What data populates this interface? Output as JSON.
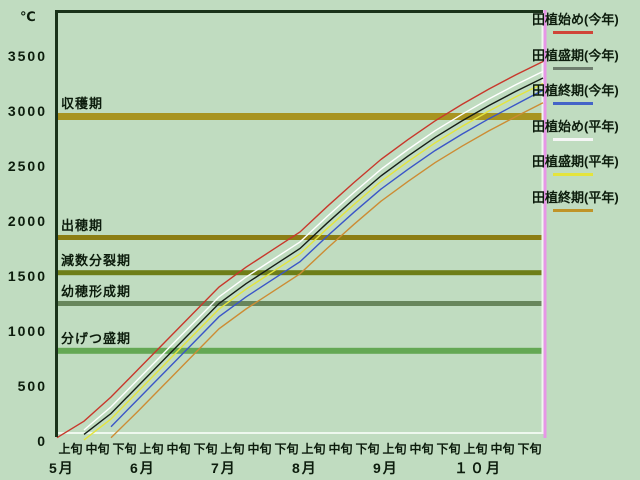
{
  "chart_data": {
    "type": "line",
    "title": "",
    "ylabel": "℃",
    "ylim": [
      0,
      3700
    ],
    "yticks": [
      0,
      500,
      1000,
      1500,
      2000,
      2500,
      3000,
      3500
    ],
    "grid": false,
    "legend_position": "right-outside",
    "x_period_labels": [
      "上旬",
      "中旬",
      "下旬",
      "上旬",
      "中旬",
      "下旬",
      "上旬",
      "中旬",
      "下旬",
      "上旬",
      "中旬",
      "下旬",
      "上旬",
      "中旬",
      "下旬",
      "上旬",
      "中旬",
      "下旬"
    ],
    "months": [
      {
        "label": "5月",
        "start_period": 0
      },
      {
        "label": "6月",
        "start_period": 3
      },
      {
        "label": "7月",
        "start_period": 6
      },
      {
        "label": "8月",
        "start_period": 9
      },
      {
        "label": "9月",
        "start_period": 12
      },
      {
        "label": "１０月",
        "start_period": 15
      }
    ],
    "series": [
      {
        "name": "田植始め(今年)",
        "color": "#c8382c",
        "legend_color": "#d04438",
        "z": 5,
        "values": [
          30,
          180,
          400,
          650,
          900,
          1150,
          1400,
          1580,
          1740,
          1900,
          2130,
          2350,
          2560,
          2740,
          2910,
          3060,
          3200,
          3330,
          3450
        ]
      },
      {
        "name": "田植盛期(今年)",
        "color": "#161e16",
        "legend_color": "#6e7e6e",
        "z": 3,
        "values": [
          null,
          60,
          250,
          500,
          750,
          1000,
          1250,
          1430,
          1590,
          1750,
          1980,
          2200,
          2410,
          2590,
          2760,
          2910,
          3050,
          3180,
          3300
        ]
      },
      {
        "name": "田植終期(今年)",
        "color": "#3a56c8",
        "legend_color": "#4464c8",
        "z": 1,
        "values": [
          null,
          null,
          130,
          380,
          630,
          880,
          1130,
          1310,
          1470,
          1630,
          1860,
          2080,
          2290,
          2470,
          2640,
          2790,
          2930,
          3060,
          3190
        ]
      },
      {
        "name": "田植始め(平年)",
        "color": "#ffffff",
        "legend_color": "#f6f6f6",
        "z": 4,
        "values": [
          null,
          100,
          310,
          560,
          810,
          1060,
          1310,
          1490,
          1650,
          1810,
          2040,
          2260,
          2470,
          2650,
          2820,
          2970,
          3110,
          3240,
          3360
        ]
      },
      {
        "name": "田植盛期(平年)",
        "color": "#e4e43c",
        "legend_color": "#e4e43c",
        "z": 2,
        "values": [
          null,
          10,
          200,
          450,
          700,
          950,
          1200,
          1380,
          1540,
          1700,
          1930,
          2150,
          2360,
          2540,
          2710,
          2860,
          3000,
          3130,
          3250
        ]
      },
      {
        "name": "田植終期(平年)",
        "color": "#cc8c34",
        "legend_color": "#c09428",
        "z": 0,
        "values": [
          null,
          null,
          30,
          270,
          520,
          770,
          1020,
          1200,
          1360,
          1520,
          1750,
          1970,
          2180,
          2360,
          2530,
          2680,
          2820,
          2950,
          3075
        ]
      }
    ],
    "stage_lines": [
      {
        "label": "収穫期",
        "value": 2950,
        "color": "#a89420",
        "thickness": 7
      },
      {
        "label": "出穂期",
        "value": 1850,
        "color": "#8c7e14",
        "thickness": 5
      },
      {
        "label": "減数分裂期",
        "value": 1530,
        "color": "#6e7e18",
        "thickness": 5
      },
      {
        "label": "幼穂形成期",
        "value": 1250,
        "color": "#68865c",
        "thickness": 5
      },
      {
        "label": "分げつ盛期",
        "value": 820,
        "color": "#64a854",
        "thickness": 6
      }
    ],
    "frame": {
      "background": "#c0dcc0",
      "dark_border": "#1a331a",
      "light_border": "#eef8ee",
      "right_marker_line": "#e796e7",
      "text_color": "#0c1c0c"
    }
  }
}
